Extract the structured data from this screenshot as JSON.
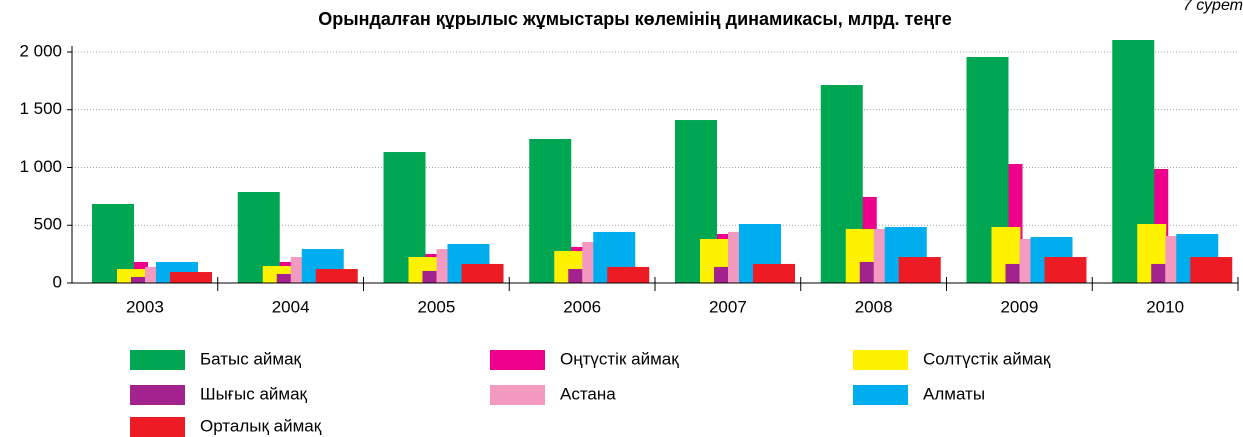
{
  "chart_data": {
    "type": "bar",
    "title": "Орындалған құрылыс жұмыстары көлемінің динамикасы, млрд. теңге",
    "caption": "7 сурет",
    "categories": [
      "2003",
      "2004",
      "2005",
      "2006",
      "2007",
      "2008",
      "2009",
      "2010"
    ],
    "series": [
      {
        "name": "Батыс аймақ",
        "color": "#00a651",
        "values": [
          684,
          788,
          1134,
          1247,
          1411,
          1714,
          1957,
          2104
        ]
      },
      {
        "name": "Оңтүстік аймақ",
        "color": "#ec008c",
        "values": [
          182,
          182,
          251,
          312,
          424,
          745,
          1030,
          987
        ]
      },
      {
        "name": "Солтүстік аймақ",
        "color": "#fff200",
        "values": [
          121,
          147,
          225,
          277,
          381,
          468,
          485,
          511
        ]
      },
      {
        "name": "Шығыс аймақ",
        "color": "#a3238e",
        "values": [
          52,
          78,
          104,
          121,
          139,
          182,
          165,
          165
        ]
      },
      {
        "name": "Астана",
        "color": "#f49ac1",
        "values": [
          139,
          225,
          294,
          355,
          442,
          468,
          381,
          407
        ]
      },
      {
        "name": "Алматы",
        "color": "#00aeef",
        "values": [
          182,
          294,
          338,
          442,
          511,
          485,
          398,
          424
        ]
      },
      {
        "name": "Орталық аймақ",
        "color": "#ed1c24",
        "values": [
          95,
          121,
          165,
          139,
          165,
          225,
          225,
          225
        ]
      }
    ],
    "ylim": [
      0,
      2000
    ],
    "yticks": [
      {
        "value": 0,
        "label": "0"
      },
      {
        "value": 500,
        "label": "500"
      },
      {
        "value": 1000,
        "label": "1 000"
      },
      {
        "value": 1500,
        "label": "1 500"
      },
      {
        "value": 2000,
        "label": "2 000"
      }
    ],
    "grid": true
  }
}
